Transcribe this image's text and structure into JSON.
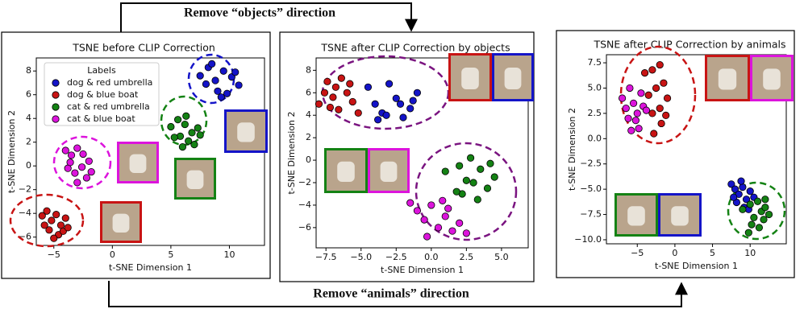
{
  "annotations": [
    "Remove “objects” direction",
    "Remove “animals” direction"
  ],
  "chart_data": [
    {
      "type": "scatter",
      "title": "TSNE before CLIP Correction",
      "xlabel": "t-SNE Dimension 1",
      "ylabel": "t-SNE Dimension 2",
      "legend": "upper left",
      "legend_title": "Labels",
      "xlim": [
        -6.5,
        13
      ],
      "ylim": [
        -6.7,
        9.1
      ],
      "xticks": [
        {
          "value": -5,
          "label": "−5"
        },
        0,
        5,
        10
      ],
      "yticks": [
        {
          "value": -6,
          "label": "−6"
        },
        {
          "value": -4,
          "label": "−4"
        },
        {
          "value": -2,
          "label": "−2"
        },
        0,
        2,
        4,
        6,
        8
      ],
      "series": [
        {
          "name": "dog & red umbrella",
          "color": "#1414c8",
          "x": [
            7.5,
            8.2,
            8.8,
            9.5,
            10.2,
            10.8,
            9,
            8,
            9.8,
            10.5,
            8.5,
            9.3
          ],
          "values": [
            7.6,
            8.3,
            7.2,
            8,
            7.5,
            6.8,
            6.3,
            6.9,
            6.1,
            7.9,
            8.6,
            5.8
          ]
        },
        {
          "name": "dog & blue boat",
          "color": "#c81414",
          "x": [
            -6,
            -5.6,
            -5.2,
            -4.8,
            -4.4,
            -4,
            -5.4,
            -4.6,
            -4.2,
            -5,
            -5.8,
            -3.8
          ],
          "values": [
            -4.2,
            -3.8,
            -4.6,
            -4.1,
            -5,
            -4.4,
            -5.4,
            -5.8,
            -5.5,
            -6.1,
            -5,
            -5.2
          ]
        },
        {
          "name": "cat & red umbrella",
          "color": "#148214",
          "x": [
            5,
            5.6,
            6.2,
            6.8,
            7.3,
            5.8,
            6.5,
            7,
            6,
            5.3,
            7.5,
            6.3
          ],
          "values": [
            3.3,
            3.9,
            3.5,
            2.8,
            3.2,
            2.5,
            2.1,
            1.8,
            1.6,
            2.4,
            2.6,
            4.2
          ]
        },
        {
          "name": "cat & blue boat",
          "color": "#dc14dc",
          "x": [
            -4,
            -3.5,
            -3,
            -2.5,
            -2,
            -3.8,
            -3.2,
            -2.6,
            -2.2,
            -3,
            -1.8,
            -3.6
          ],
          "values": [
            1.3,
            0.9,
            1.5,
            1,
            0.4,
            -0.2,
            -0.6,
            -0.1,
            -1,
            -1.4,
            -0.5,
            0.3
          ]
        }
      ]
    },
    {
      "type": "scatter",
      "title": "TSNE after CLIP Correction by objects",
      "xlabel": "t-SNE Dimension 1",
      "ylabel": "t-SNE Dimension 2",
      "xlim": [
        -8.2,
        6.9
      ],
      "ylim": [
        -7.8,
        9.1
      ],
      "xticks": [
        {
          "value": -7.5,
          "label": "−7.5"
        },
        {
          "value": -5,
          "label": "−5.0"
        },
        {
          "value": -2.5,
          "label": "−2.5"
        },
        {
          "value": 0,
          "label": "0.0"
        },
        2.5,
        {
          "value": 5,
          "label": "5.0"
        }
      ],
      "yticks": [
        {
          "value": -6,
          "label": "−6"
        },
        {
          "value": -4,
          "label": "−4"
        },
        {
          "value": -2,
          "label": "−2"
        },
        0,
        2,
        4,
        6,
        8
      ],
      "series": [
        {
          "color": "#c81414",
          "x": [
            -8,
            -7.6,
            -7.2,
            -6.8,
            -6.4,
            -6,
            -5.6,
            -7.4,
            -6.6,
            -5.8,
            -5.2,
            -7
          ],
          "values": [
            5,
            6,
            4.7,
            6.5,
            7.3,
            6,
            5.2,
            7,
            4.5,
            6.8,
            4.2,
            5.6
          ]
        },
        {
          "color": "#1414c8",
          "x": [
            -4.5,
            -4,
            -3.5,
            -3,
            -2.5,
            -2,
            -1.5,
            -1,
            -3.2,
            -2.2,
            -3.8,
            -1.3
          ],
          "values": [
            6.5,
            5,
            4.2,
            6.8,
            5.5,
            3.8,
            4.6,
            6,
            4,
            5,
            3.6,
            5.3
          ]
        },
        {
          "color": "#148214",
          "x": [
            1,
            2,
            2.5,
            3,
            3.5,
            4,
            4.5,
            2.2,
            3.3,
            4.2,
            1.8,
            2.8
          ],
          "values": [
            -1,
            -0.5,
            -1.8,
            -2,
            -0.8,
            -2.5,
            -1.5,
            -3,
            -3.5,
            -0.3,
            -2.8,
            0.2
          ]
        },
        {
          "color": "#dc14dc",
          "x": [
            -1.5,
            -1,
            -0.5,
            0,
            0.5,
            1,
            1.5,
            2,
            -0.3,
            1.2,
            0.8,
            2.5
          ],
          "values": [
            -3.8,
            -4.5,
            -5.3,
            -4,
            -6,
            -5,
            -6.3,
            -5.6,
            -6.8,
            -4.3,
            -3.6,
            -6.5
          ]
        }
      ]
    },
    {
      "type": "scatter",
      "title": "TSNE after CLIP Correction by animals",
      "xlabel": "t-SNE Dimension 1",
      "ylabel": "t-SNE Dimension 2",
      "xlim": [
        -9.1,
        14.8
      ],
      "ylim": [
        -10.4,
        8.3
      ],
      "xticks": [
        {
          "value": -5,
          "label": "−5"
        },
        0,
        5,
        10
      ],
      "yticks": [
        {
          "value": -10,
          "label": "−10.0"
        },
        {
          "value": -7.5,
          "label": "−7.5"
        },
        {
          "value": -5,
          "label": "−5.0"
        },
        {
          "value": -2.5,
          "label": "−2.5"
        },
        {
          "value": 0,
          "label": "0.0"
        },
        2.5,
        {
          "value": 5,
          "label": "5.0"
        },
        7.5
      ],
      "series": [
        {
          "color": "#c81414",
          "x": [
            -4,
            -3,
            -2,
            -1.5,
            -2.5,
            -3.5,
            -1,
            -2,
            -3,
            -1.8,
            -2.8,
            -1.2
          ],
          "values": [
            6.5,
            6.8,
            7.3,
            5.5,
            5,
            4.3,
            4,
            3,
            2.5,
            1.5,
            0.5,
            2.3
          ]
        },
        {
          "color": "#dc14dc",
          "x": [
            -7,
            -6.5,
            -6,
            -5.5,
            -5,
            -4.5,
            -6.2,
            -5.2,
            -4.2,
            -5.8,
            -4.8,
            -3.8
          ],
          "values": [
            4,
            3,
            5,
            3.5,
            2.5,
            4.5,
            2,
            1.8,
            3.2,
            0.8,
            1,
            2.8
          ]
        },
        {
          "color": "#1414c8",
          "x": [
            7.5,
            8,
            8.5,
            9,
            9.5,
            10,
            8.2,
            9.2,
            10.5,
            8.8,
            7.8,
            9.8
          ],
          "values": [
            -4.5,
            -5,
            -5.5,
            -4.8,
            -6,
            -5.2,
            -6.3,
            -6.8,
            -5.8,
            -4.2,
            -5.8,
            -7
          ]
        },
        {
          "color": "#148214",
          "x": [
            9,
            10,
            10.5,
            11,
            11.5,
            12,
            12.5,
            10.2,
            11.2,
            12,
            9.8,
            11.8
          ],
          "values": [
            -7,
            -6.5,
            -7.8,
            -6.2,
            -7.2,
            -6.8,
            -7.5,
            -8.5,
            -8.8,
            -6,
            -9.3,
            -8
          ]
        }
      ]
    }
  ]
}
